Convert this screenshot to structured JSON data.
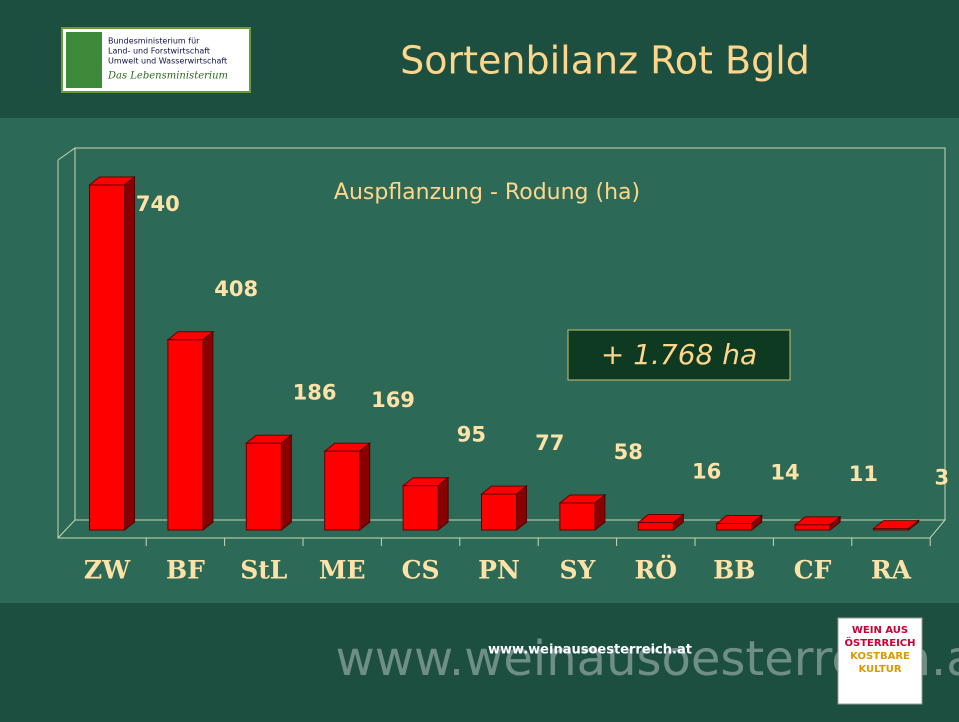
{
  "logo": {
    "lines": [
      "Bundesministerium für",
      "Land- und Forstwirtschaft",
      "Umwelt und Wasserwirtschaft"
    ],
    "slogan": "Das Lebensministerium"
  },
  "chart_data": {
    "type": "bar",
    "title": "Sortenbilanz Rot Bgld",
    "subtitle": "Auspflanzung - Rodung (ha)",
    "annotation": "+ 1.768 ha",
    "categories": [
      "ZW",
      "BF",
      "StL",
      "ME",
      "CS",
      "PN",
      "SY",
      "RÖ",
      "BB",
      "CF",
      "RA"
    ],
    "values": [
      740,
      408,
      186,
      169,
      95,
      77,
      58,
      16,
      14,
      11,
      3
    ],
    "color": "#ff0000"
  },
  "footer": {
    "url": "www.weinausoesterreich.at",
    "brand": "www.weinausoesterreich.at",
    "badge": [
      "WEIN AUS",
      "ÖSTERREICH",
      "KOSTBARE",
      "KULTUR"
    ]
  }
}
